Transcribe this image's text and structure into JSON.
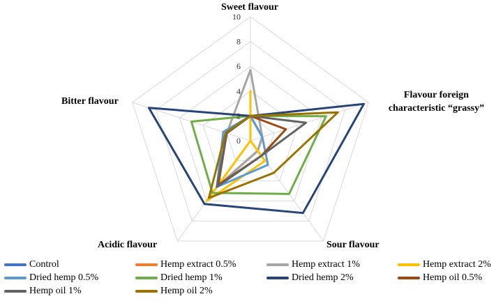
{
  "chart_data": {
    "type": "radar",
    "axes": [
      "Sweet flavour",
      "Flavour foreign characteristic “grassy”",
      "Sour flavour",
      "Acidic flavour",
      "Bitter flavour"
    ],
    "axis_labels": {
      "sweet": "Sweet flavour",
      "grassy_line1": "Flavour foreign",
      "grassy_line2": "characteristic “grassy”",
      "sour": "Sour flavour",
      "acidic": "Acidic flavour",
      "bitter": "Bitter flavour"
    },
    "range": [
      0,
      10
    ],
    "ticks": [
      "0",
      "2",
      "4",
      "6",
      "8",
      "10"
    ],
    "grid": true,
    "legend_position": "bottom",
    "series": [
      {
        "name": "Control",
        "color": "#4472C4",
        "values": [
          2.0,
          1.0,
          1.0,
          4.6,
          2.0
        ]
      },
      {
        "name": "Hemp extract 0.5%",
        "color": "#ED7D31",
        "values": [
          2.0,
          1.0,
          1.0,
          4.6,
          2.0
        ]
      },
      {
        "name": "Hemp extract 1%",
        "color": "#A5A5A5",
        "values": [
          5.7,
          1.0,
          1.0,
          4.6,
          2.0
        ]
      },
      {
        "name": "Hemp extract 2%",
        "color": "#FFC000",
        "values": [
          4.0,
          0.0,
          2.0,
          6.0,
          0.0
        ]
      },
      {
        "name": "Dried hemp 0.5%",
        "color": "#5B9BD5",
        "values": [
          2.0,
          1.0,
          2.4,
          4.6,
          2.3
        ]
      },
      {
        "name": "Dried hemp 1%",
        "color": "#70AD47",
        "values": [
          2.0,
          6.4,
          5.3,
          5.2,
          5.0
        ]
      },
      {
        "name": "Dried hemp 2%",
        "color": "#264478",
        "values": [
          2.0,
          9.6,
          7.2,
          6.3,
          8.6
        ]
      },
      {
        "name": "Hemp oil 0.5%",
        "color": "#9E480E",
        "values": [
          2.0,
          3.0,
          1.5,
          4.4,
          2.0
        ]
      },
      {
        "name": "Hemp oil 1%",
        "color": "#636363",
        "values": [
          2.0,
          4.7,
          1.5,
          4.6,
          2.0
        ]
      },
      {
        "name": "Hemp oil 2%",
        "color": "#997300",
        "values": [
          2.0,
          7.4,
          3.2,
          5.7,
          2.1
        ]
      }
    ]
  }
}
